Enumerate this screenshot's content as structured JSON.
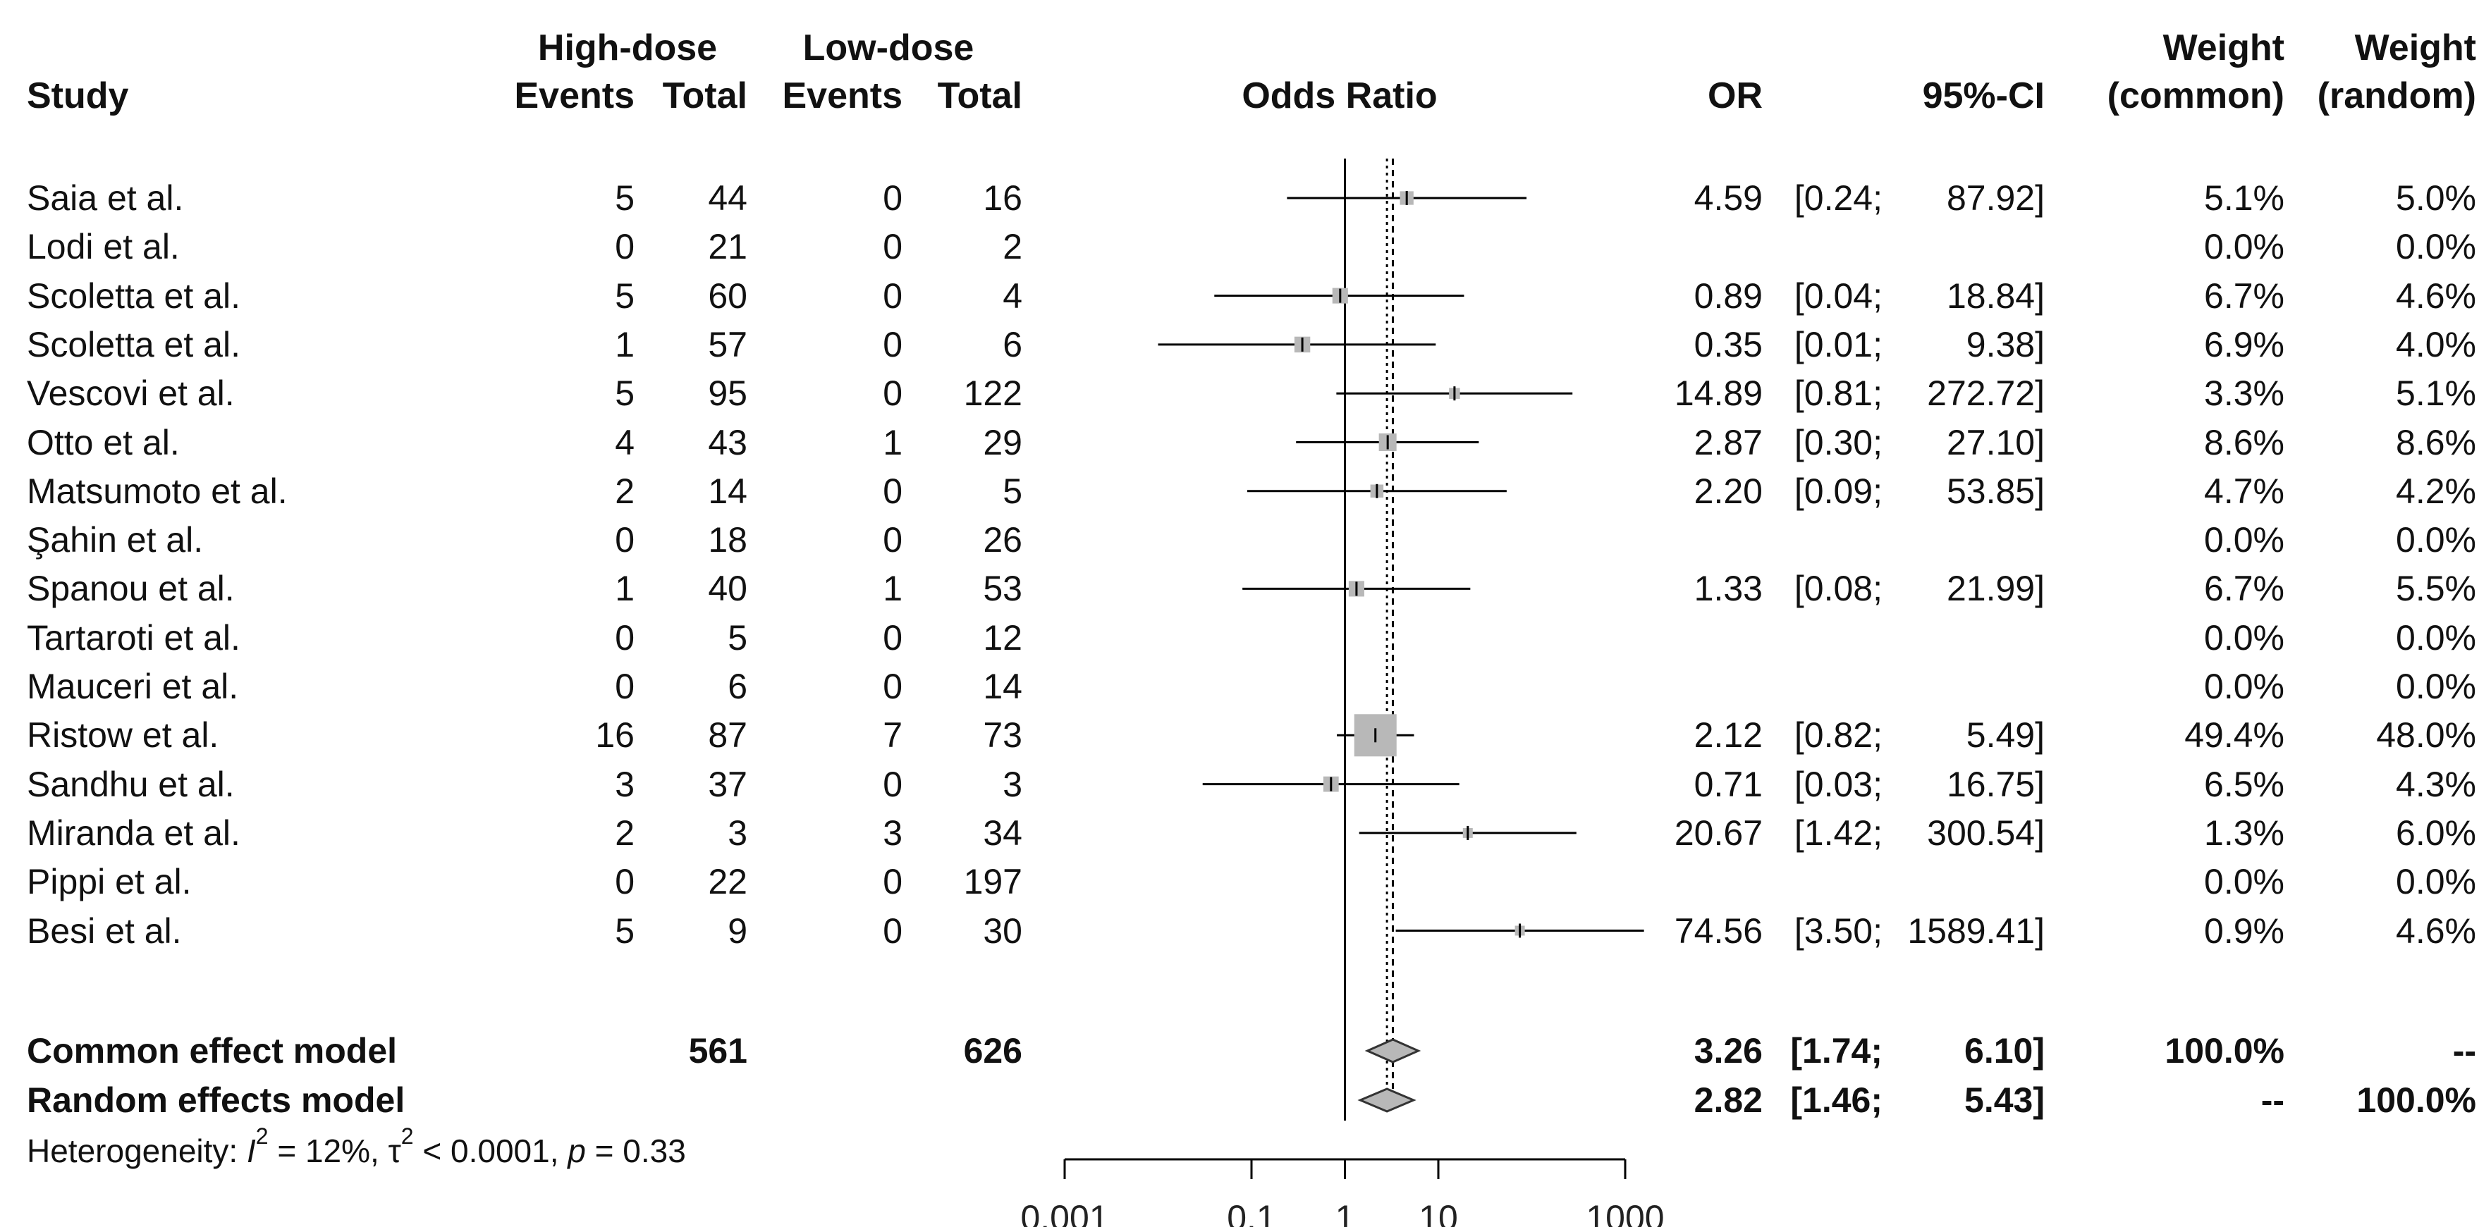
{
  "chart_data": {
    "type": "forest",
    "title": "",
    "xlabel": "",
    "axis_label": "Odds Ratio",
    "x_scale": "log",
    "xlim": [
      0.001,
      1000
    ],
    "ticks": [
      {
        "value": 0.001,
        "label": "0.001"
      },
      {
        "value": 0.1,
        "label": "0.1"
      },
      {
        "value": 1,
        "label": "1"
      },
      {
        "value": 10,
        "label": "10"
      },
      {
        "value": 1000,
        "label": "1000"
      }
    ],
    "headers": {
      "study": "Study",
      "group1": "High-dose",
      "group2": "Low-dose",
      "events": "Events",
      "total": "Total",
      "or": "OR",
      "ci": "95%-CI",
      "weight": "Weight",
      "weight_common": "(common)",
      "weight_random": "(random)"
    },
    "studies": [
      {
        "name": "Saia et al.",
        "e1": "5",
        "t1": "44",
        "e2": "0",
        "t2": "16",
        "or": 4.59,
        "lo": 0.24,
        "hi": 87.92,
        "or_text": "4.59",
        "ci_lo_text": "[0.24;",
        "ci_hi_text": "87.92]",
        "w_common": "5.1%",
        "w_random": "5.0%",
        "w": 5.1
      },
      {
        "name": "Lodi et al.",
        "e1": "0",
        "t1": "21",
        "e2": "0",
        "t2": "2",
        "or": null,
        "lo": null,
        "hi": null,
        "or_text": "",
        "ci_lo_text": "",
        "ci_hi_text": "",
        "w_common": "0.0%",
        "w_random": "0.0%",
        "w": 0
      },
      {
        "name": "Scoletta et al.",
        "e1": "5",
        "t1": "60",
        "e2": "0",
        "t2": "4",
        "or": 0.89,
        "lo": 0.04,
        "hi": 18.84,
        "or_text": "0.89",
        "ci_lo_text": "[0.04;",
        "ci_hi_text": "18.84]",
        "w_common": "6.7%",
        "w_random": "4.6%",
        "w": 6.7
      },
      {
        "name": "Scoletta et al.",
        "e1": "1",
        "t1": "57",
        "e2": "0",
        "t2": "6",
        "or": 0.35,
        "lo": 0.01,
        "hi": 9.38,
        "or_text": "0.35",
        "ci_lo_text": "[0.01;",
        "ci_hi_text": "9.38]",
        "w_common": "6.9%",
        "w_random": "4.0%",
        "w": 6.9
      },
      {
        "name": "Vescovi et al.",
        "e1": "5",
        "t1": "95",
        "e2": "0",
        "t2": "122",
        "or": 14.89,
        "lo": 0.81,
        "hi": 272.72,
        "or_text": "14.89",
        "ci_lo_text": "[0.81;",
        "ci_hi_text": "272.72]",
        "w_common": "3.3%",
        "w_random": "5.1%",
        "w": 3.3
      },
      {
        "name": "Otto et al.",
        "e1": "4",
        "t1": "43",
        "e2": "1",
        "t2": "29",
        "or": 2.87,
        "lo": 0.3,
        "hi": 27.1,
        "or_text": "2.87",
        "ci_lo_text": "[0.30;",
        "ci_hi_text": "27.10]",
        "w_common": "8.6%",
        "w_random": "8.6%",
        "w": 8.6
      },
      {
        "name": "Matsumoto et al.",
        "e1": "2",
        "t1": "14",
        "e2": "0",
        "t2": "5",
        "or": 2.2,
        "lo": 0.09,
        "hi": 53.85,
        "or_text": "2.20",
        "ci_lo_text": "[0.09;",
        "ci_hi_text": "53.85]",
        "w_common": "4.7%",
        "w_random": "4.2%",
        "w": 4.7
      },
      {
        "name": "Şahin et al.",
        "e1": "0",
        "t1": "18",
        "e2": "0",
        "t2": "26",
        "or": null,
        "lo": null,
        "hi": null,
        "or_text": "",
        "ci_lo_text": "",
        "ci_hi_text": "",
        "w_common": "0.0%",
        "w_random": "0.0%",
        "w": 0
      },
      {
        "name": "Spanou et al.",
        "e1": "1",
        "t1": "40",
        "e2": "1",
        "t2": "53",
        "or": 1.33,
        "lo": 0.08,
        "hi": 21.99,
        "or_text": "1.33",
        "ci_lo_text": "[0.08;",
        "ci_hi_text": "21.99]",
        "w_common": "6.7%",
        "w_random": "5.5%",
        "w": 6.7
      },
      {
        "name": "Tartaroti et al.",
        "e1": "0",
        "t1": "5",
        "e2": "0",
        "t2": "12",
        "or": null,
        "lo": null,
        "hi": null,
        "or_text": "",
        "ci_lo_text": "",
        "ci_hi_text": "",
        "w_common": "0.0%",
        "w_random": "0.0%",
        "w": 0
      },
      {
        "name": "Mauceri et al.",
        "e1": "0",
        "t1": "6",
        "e2": "0",
        "t2": "14",
        "or": null,
        "lo": null,
        "hi": null,
        "or_text": "",
        "ci_lo_text": "",
        "ci_hi_text": "",
        "w_common": "0.0%",
        "w_random": "0.0%",
        "w": 0
      },
      {
        "name": "Ristow et al.",
        "e1": "16",
        "t1": "87",
        "e2": "7",
        "t2": "73",
        "or": 2.12,
        "lo": 0.82,
        "hi": 5.49,
        "or_text": "2.12",
        "ci_lo_text": "[0.82;",
        "ci_hi_text": "5.49]",
        "w_common": "49.4%",
        "w_random": "48.0%",
        "w": 49.4
      },
      {
        "name": "Sandhu et al.",
        "e1": "3",
        "t1": "37",
        "e2": "0",
        "t2": "3",
        "or": 0.71,
        "lo": 0.03,
        "hi": 16.75,
        "or_text": "0.71",
        "ci_lo_text": "[0.03;",
        "ci_hi_text": "16.75]",
        "w_common": "6.5%",
        "w_random": "4.3%",
        "w": 6.5
      },
      {
        "name": "Miranda et al.",
        "e1": "2",
        "t1": "3",
        "e2": "3",
        "t2": "34",
        "or": 20.67,
        "lo": 1.42,
        "hi": 300.54,
        "or_text": "20.67",
        "ci_lo_text": "[1.42;",
        "ci_hi_text": "300.54]",
        "w_common": "1.3%",
        "w_random": "6.0%",
        "w": 1.3
      },
      {
        "name": "Pippi et al.",
        "e1": "0",
        "t1": "22",
        "e2": "0",
        "t2": "197",
        "or": null,
        "lo": null,
        "hi": null,
        "or_text": "",
        "ci_lo_text": "",
        "ci_hi_text": "",
        "w_common": "0.0%",
        "w_random": "0.0%",
        "w": 0
      },
      {
        "name": "Besi et al.",
        "e1": "5",
        "t1": "9",
        "e2": "0",
        "t2": "30",
        "or": 74.56,
        "lo": 3.5,
        "hi": 1589.41,
        "or_text": "74.56",
        "ci_lo_text": "[3.50;",
        "ci_hi_text": "1589.41]",
        "w_common": "0.9%",
        "w_random": "4.6%",
        "w": 0.9
      }
    ],
    "pooled": [
      {
        "name": "Common effect model",
        "t1": "561",
        "t2": "626",
        "or": 3.26,
        "lo": 1.74,
        "hi": 6.1,
        "or_text": "3.26",
        "ci_lo_text": "[1.74;",
        "ci_hi_text": "6.10]",
        "w_common": "100.0%",
        "w_random": "--"
      },
      {
        "name": "Random effects model",
        "t1": "",
        "t2": "",
        "or": 2.82,
        "lo": 1.46,
        "hi": 5.43,
        "or_text": "2.82",
        "ci_lo_text": "[1.46;",
        "ci_hi_text": "5.43]",
        "w_common": "--",
        "w_random": "100.0%"
      }
    ],
    "heterogeneity": {
      "prefix": "Heterogeneity: ",
      "i2_symbol": "I",
      "i2_sup": "2",
      "i2_value": " = 12%, ",
      "tau_symbol": "τ",
      "tau_sup": "2",
      "tau_value": " < 0.0001, ",
      "p_symbol": "p",
      "p_value": " = 0.33"
    }
  }
}
